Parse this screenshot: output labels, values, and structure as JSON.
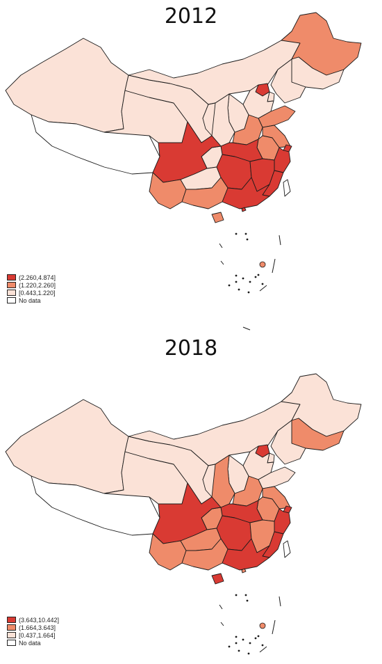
{
  "colors": {
    "high": "#d93a33",
    "mid": "#ef8b6a",
    "low": "#fbe2d7",
    "nodata": "#ffffff"
  },
  "panels": [
    {
      "title": "2012",
      "legend": [
        {
          "label": "(2.260,4.874]",
          "color": "#d93a33"
        },
        {
          "label": "(1.220,2.260]",
          "color": "#ef8b6a"
        },
        {
          "label": "[0.443,1.220]",
          "color": "#fbe2d7"
        },
        {
          "label": "No data",
          "color": "#ffffff"
        }
      ],
      "classes": {
        "xinjiang": "low",
        "tibet": "nodata",
        "qinghai": "low",
        "gansu": "low",
        "inner_mongolia": "low",
        "heilongjiang": "mid",
        "jilin": "low",
        "liaoning": "low",
        "beijing": "high",
        "tianjin": "low",
        "hebei": "low",
        "shanxi": "low",
        "shaanxi": "low",
        "ningxia": "low",
        "shandong": "mid",
        "henan": "mid",
        "jiangsu": "mid",
        "anhui": "mid",
        "shanghai": "high",
        "zhejiang": "high",
        "hubei": "high",
        "chongqing": "low",
        "sichuan": "high",
        "yunnan": "mid",
        "guizhou": "low",
        "hunan": "high",
        "jiangxi": "high",
        "fujian": "high",
        "guangxi": "mid",
        "guangdong": "high",
        "hainan": "mid",
        "taiwan": "nodata",
        "hongkong": "high"
      }
    },
    {
      "title": "2018",
      "legend": [
        {
          "label": "(3.643,10.442]",
          "color": "#d93a33"
        },
        {
          "label": "(1.664,3.643]",
          "color": "#ef8b6a"
        },
        {
          "label": "[0.437,1.664]",
          "color": "#fbe2d7"
        },
        {
          "label": "No data",
          "color": "#ffffff"
        }
      ],
      "classes": {
        "xinjiang": "low",
        "tibet": "nodata",
        "qinghai": "low",
        "gansu": "low",
        "inner_mongolia": "low",
        "heilongjiang": "low",
        "jilin": "mid",
        "liaoning": "low",
        "beijing": "high",
        "tianjin": "low",
        "hebei": "low",
        "shanxi": "low",
        "shaanxi": "mid",
        "ningxia": "low",
        "shandong": "low",
        "henan": "mid",
        "jiangsu": "mid",
        "anhui": "mid",
        "shanghai": "high",
        "zhejiang": "high",
        "hubei": "high",
        "chongqing": "mid",
        "sichuan": "high",
        "yunnan": "mid",
        "guizhou": "mid",
        "hunan": "high",
        "jiangxi": "mid",
        "fujian": "high",
        "guangxi": "mid",
        "guangdong": "high",
        "hainan": "high",
        "taiwan": "nodata",
        "hongkong": "mid"
      }
    }
  ]
}
